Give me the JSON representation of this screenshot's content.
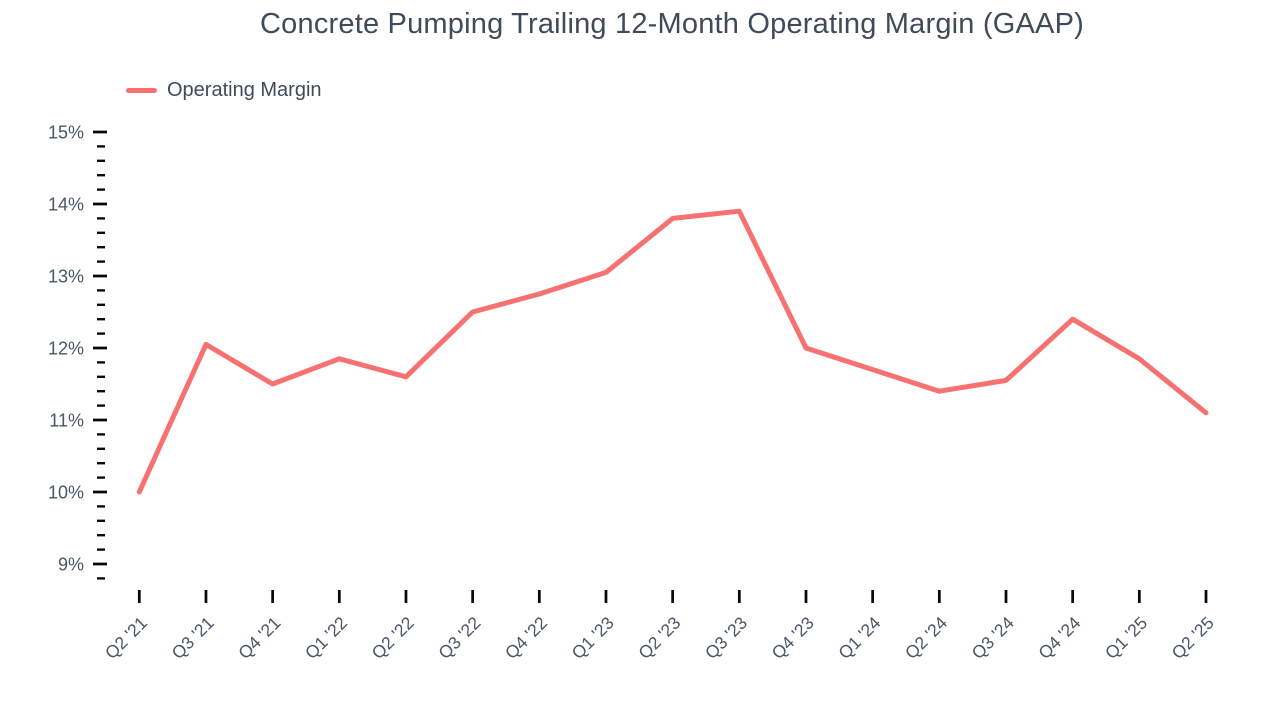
{
  "colors": {
    "series": "#f87171",
    "title_text": "#414a5a",
    "axis_label_text": "#4a5568",
    "tick": "#0a0a0a",
    "background": "#ffffff"
  },
  "legend": {
    "items": [
      {
        "label": "Operating Margin",
        "color": "#f87171"
      }
    ],
    "position": "top-left"
  },
  "chart_data": {
    "type": "line",
    "title": "Concrete Pumping Trailing 12-Month Operating Margin (GAAP)",
    "xlabel": "",
    "ylabel": "",
    "grid": false,
    "legend_position": "top-left",
    "categories": [
      "Q2 '21",
      "Q3 '21",
      "Q4 '21",
      "Q1 '22",
      "Q2 '22",
      "Q3 '22",
      "Q4 '22",
      "Q1 '23",
      "Q2 '23",
      "Q3 '23",
      "Q4 '23",
      "Q1 '24",
      "Q2 '24",
      "Q3 '24",
      "Q4 '24",
      "Q1 '25",
      "Q2 '25"
    ],
    "series": [
      {
        "name": "Operating Margin",
        "color": "#f87171",
        "values": [
          10.0,
          12.05,
          11.5,
          11.85,
          11.6,
          12.5,
          12.75,
          13.05,
          13.8,
          13.9,
          12.0,
          11.7,
          11.4,
          11.55,
          12.4,
          11.85,
          11.1
        ]
      }
    ],
    "y_axis": {
      "unit": "%",
      "major_tick_values": [
        15,
        14,
        13,
        12,
        11,
        10,
        9
      ],
      "major_tick_labels": [
        "15%",
        "14%",
        "13%",
        "12%",
        "11%",
        "10%",
        "9%"
      ],
      "minor_tick_step": 0.2,
      "axis_min": 8.8,
      "axis_max": 15
    },
    "ylim": [
      8.8,
      15
    ]
  }
}
